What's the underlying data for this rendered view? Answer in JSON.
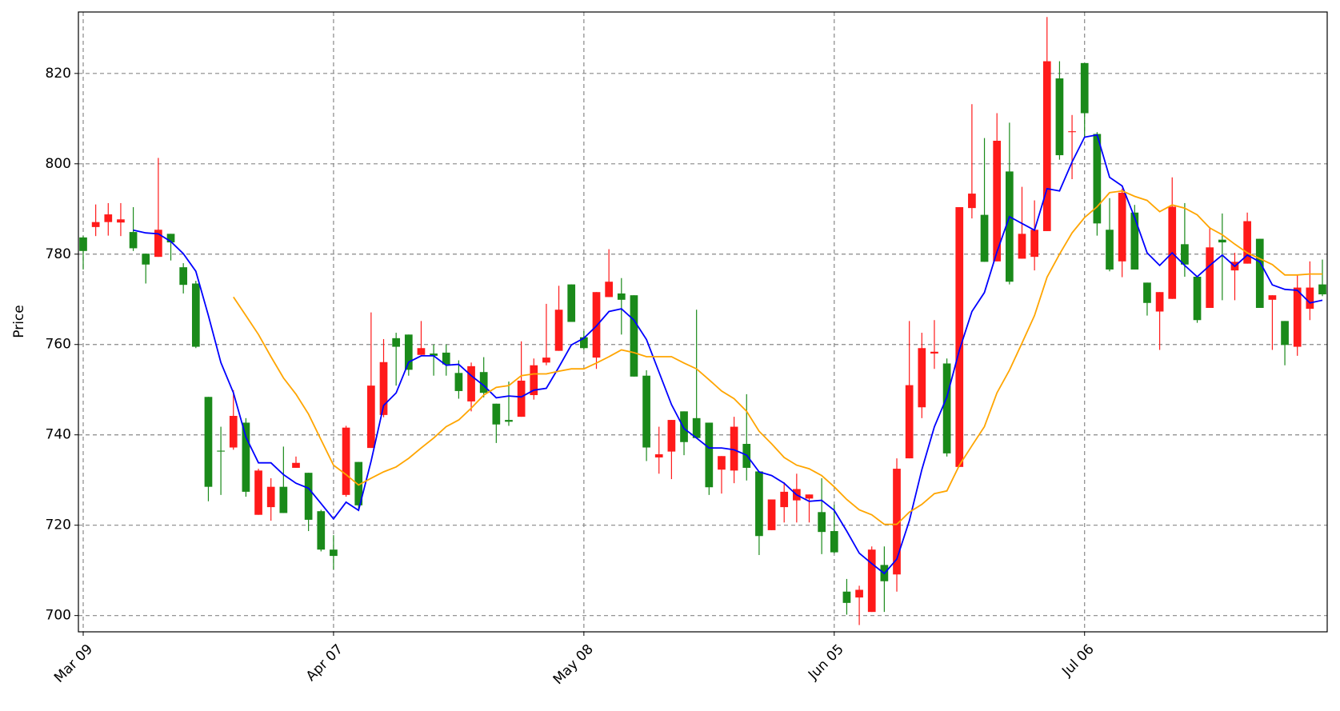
{
  "chart_data": {
    "type": "candlestick",
    "y_label": "Price",
    "categories": [
      "Mar 09",
      null,
      null,
      null,
      null,
      null,
      null,
      null,
      null,
      null,
      null,
      null,
      null,
      null,
      null,
      null,
      null,
      null,
      null,
      null,
      "Apr 07",
      null,
      null,
      null,
      null,
      null,
      null,
      null,
      null,
      null,
      null,
      null,
      null,
      null,
      null,
      null,
      null,
      null,
      null,
      null,
      "May 08",
      null,
      null,
      null,
      null,
      null,
      null,
      null,
      null,
      null,
      null,
      null,
      null,
      null,
      null,
      null,
      null,
      null,
      null,
      null,
      "Jun 05",
      null,
      null,
      null,
      null,
      null,
      null,
      null,
      null,
      null,
      null,
      null,
      null,
      null,
      null,
      null,
      null,
      null,
      null,
      null,
      "Jul 06",
      null,
      null,
      null,
      null,
      null,
      null,
      null,
      null,
      null,
      null,
      null,
      null,
      null,
      null,
      null,
      null,
      null,
      null,
      null
    ],
    "open": [
      783.7,
      786.0,
      787.1,
      787.0,
      784.9,
      780.1,
      779.4,
      784.5,
      777.1,
      773.5,
      748.4,
      736.5,
      737.2,
      742.7,
      722.3,
      724.0,
      728.5,
      732.7,
      731.6,
      723.1,
      714.6,
      726.7,
      734.0,
      737.1,
      744.4,
      761.4,
      762.2,
      757.7,
      758.0,
      758.2,
      753.7,
      747.4,
      753.9,
      746.9,
      743.3,
      744.0,
      748.8,
      756.0,
      758.6,
      773.3,
      761.6,
      757.1,
      770.5,
      771.3,
      770.9,
      753.1,
      735.0,
      736.3,
      745.2,
      743.7,
      742.7,
      732.3,
      732.1,
      738.0,
      731.9,
      718.9,
      724.0,
      725.5,
      725.9,
      722.9,
      718.7,
      705.3,
      704.0,
      700.8,
      711.2,
      709.1,
      734.8,
      746.1,
      758.0,
      755.8,
      732.9,
      790.2,
      788.7,
      778.4,
      798.3,
      779.0,
      779.4,
      785.1,
      818.9,
      807.0,
      822.3,
      806.6,
      785.4,
      778.4,
      789.2,
      773.7,
      767.3,
      770.1,
      782.2,
      775.0,
      768.1,
      783.2,
      776.4,
      777.9,
      783.4,
      769.9,
      765.2,
      759.5,
      767.9,
      773.3
    ],
    "high": [
      784.0,
      791.0,
      791.3,
      791.3,
      790.4,
      780.1,
      801.3,
      784.5,
      778.0,
      774.1,
      748.4,
      741.8,
      749.9,
      743.7,
      732.5,
      730.4,
      737.4,
      735.2,
      731.6,
      723.4,
      717.8,
      742.0,
      734.0,
      767.1,
      761.2,
      762.6,
      762.2,
      765.2,
      760.0,
      760.0,
      756.5,
      756.0,
      757.2,
      746.9,
      751.8,
      760.7,
      756.9,
      769.0,
      773.0,
      773.3,
      763.0,
      771.6,
      781.1,
      774.7,
      770.9,
      754.3,
      741.8,
      743.3,
      745.2,
      767.7,
      742.7,
      735.3,
      744.0,
      749.0,
      731.9,
      725.7,
      729.5,
      731.4,
      726.8,
      730.4,
      724.5,
      708.1,
      706.6,
      715.3,
      715.3,
      734.8,
      765.2,
      762.6,
      765.4,
      756.9,
      790.4,
      813.2,
      805.7,
      811.2,
      809.1,
      794.9,
      791.9,
      832.5,
      822.7,
      810.8,
      822.3,
      807.0,
      792.4,
      794.5,
      790.9,
      773.7,
      771.6,
      797.0,
      791.3,
      775.0,
      786.0,
      789.0,
      780.3,
      789.2,
      783.4,
      770.9,
      765.2,
      775.4,
      778.4,
      778.8
    ],
    "low": [
      776.6,
      784.0,
      784.1,
      784.0,
      780.7,
      773.5,
      779.4,
      778.6,
      771.3,
      759.2,
      725.3,
      726.7,
      736.7,
      726.3,
      722.3,
      721.0,
      722.7,
      732.7,
      718.7,
      714.2,
      710.2,
      726.3,
      723.3,
      737.1,
      743.9,
      750.9,
      753.1,
      757.7,
      753.1,
      753.1,
      748.0,
      745.2,
      748.3,
      738.2,
      742.0,
      744.0,
      747.8,
      755.4,
      758.6,
      765.0,
      758.8,
      754.6,
      770.5,
      762.2,
      752.9,
      734.2,
      731.4,
      730.2,
      735.5,
      739.3,
      726.7,
      727.0,
      729.3,
      729.9,
      713.4,
      718.9,
      720.6,
      720.6,
      720.6,
      713.6,
      713.8,
      700.2,
      697.9,
      700.8,
      700.8,
      705.3,
      734.8,
      743.7,
      754.6,
      735.2,
      732.9,
      787.9,
      778.3,
      778.4,
      773.3,
      779.0,
      776.4,
      785.1,
      800.9,
      796.6,
      806.0,
      784.1,
      776.2,
      774.9,
      776.6,
      766.4,
      758.8,
      770.1,
      775.0,
      764.8,
      768.1,
      769.8,
      769.8,
      777.9,
      768.1,
      758.8,
      755.4,
      757.5,
      765.4,
      770.7
    ],
    "close": [
      780.7,
      787.1,
      788.8,
      787.7,
      781.3,
      777.7,
      785.4,
      782.6,
      773.2,
      759.5,
      728.5,
      736.3,
      744.2,
      727.4,
      732.1,
      728.5,
      722.7,
      733.8,
      721.2,
      714.6,
      713.2,
      741.6,
      724.4,
      750.9,
      756.1,
      759.5,
      754.4,
      759.2,
      757.5,
      755.6,
      749.7,
      755.2,
      749.3,
      742.3,
      742.9,
      752.0,
      755.4,
      757.1,
      767.7,
      765.0,
      759.2,
      771.6,
      773.9,
      769.9,
      752.9,
      737.2,
      735.7,
      743.3,
      738.4,
      739.3,
      728.4,
      735.3,
      741.8,
      732.7,
      717.6,
      725.7,
      727.4,
      728.0,
      726.8,
      718.5,
      714.0,
      702.8,
      705.7,
      714.6,
      707.6,
      732.5,
      751.0,
      759.2,
      758.4,
      735.9,
      790.4,
      793.4,
      778.3,
      805.1,
      773.9,
      784.5,
      785.4,
      822.7,
      801.9,
      807.2,
      811.2,
      786.8,
      776.6,
      793.6,
      776.6,
      769.2,
      771.6,
      790.5,
      777.7,
      765.4,
      781.5,
      782.6,
      778.3,
      787.3,
      768.1,
      770.9,
      759.9,
      772.6,
      772.6,
      771.1
    ],
    "up_color": "#ff1a1a",
    "down_color": "#1a8a1a",
    "lines": [
      {
        "color": "#0000ff",
        "values": [
          null,
          null,
          null,
          null,
          785.3,
          784.7,
          784.5,
          782.8,
          780.1,
          776.2,
          766.4,
          756.0,
          749.3,
          739.5,
          733.8,
          733.8,
          731.2,
          729.3,
          728.2,
          724.8,
          721.4,
          725.1,
          723.3,
          734.2,
          746.5,
          749.3,
          756.1,
          757.5,
          757.5,
          755.4,
          755.6,
          753.1,
          750.9,
          748.2,
          748.6,
          748.4,
          749.9,
          750.3,
          755.0,
          759.9,
          761.4,
          764.1,
          767.3,
          767.9,
          765.4,
          761.1,
          753.9,
          746.7,
          741.4,
          739.3,
          737.1,
          737.1,
          736.7,
          735.5,
          731.8,
          731.0,
          729.3,
          726.7,
          725.3,
          725.5,
          723.3,
          718.7,
          713.8,
          711.5,
          709.3,
          712.5,
          721.0,
          732.3,
          741.8,
          748.4,
          758.8,
          767.3,
          771.5,
          780.5,
          788.3,
          786.8,
          785.3,
          794.5,
          794.0,
          800.4,
          805.9,
          806.4,
          797.0,
          795.1,
          788.1,
          780.3,
          777.5,
          780.3,
          777.5,
          775.0,
          777.5,
          779.8,
          777.3,
          779.8,
          778.3,
          773.2,
          772.2,
          772.0,
          769.2,
          769.8
        ]
      },
      {
        "color": "#ffa500",
        "values": [
          null,
          null,
          null,
          null,
          null,
          null,
          null,
          null,
          null,
          null,
          null,
          null,
          770.5,
          766.4,
          762.2,
          757.3,
          752.6,
          749.0,
          744.6,
          738.9,
          733.3,
          731.2,
          728.9,
          730.4,
          731.8,
          732.9,
          734.8,
          737.1,
          739.3,
          741.8,
          743.3,
          745.9,
          748.8,
          750.5,
          750.9,
          753.1,
          753.5,
          753.5,
          754.1,
          754.6,
          754.6,
          755.9,
          757.3,
          758.8,
          758.2,
          757.3,
          757.3,
          757.3,
          755.9,
          754.6,
          752.2,
          749.7,
          748.0,
          745.2,
          740.8,
          738.0,
          735.0,
          733.3,
          732.5,
          731.0,
          728.5,
          725.7,
          723.4,
          722.3,
          720.2,
          720.2,
          722.9,
          724.6,
          727.0,
          727.6,
          733.3,
          737.6,
          741.8,
          749.3,
          754.3,
          760.3,
          766.4,
          774.9,
          780.0,
          784.7,
          788.1,
          790.5,
          793.6,
          794.0,
          792.8,
          791.9,
          789.4,
          790.9,
          790.2,
          788.7,
          785.8,
          784.3,
          782.2,
          780.3,
          779.0,
          777.7,
          775.4,
          775.4,
          775.6,
          775.6
        ]
      }
    ],
    "ylim": [
      696.4,
      833.6
    ],
    "yticks": [
      700,
      720,
      740,
      760,
      780,
      800,
      820
    ],
    "grid": true
  }
}
